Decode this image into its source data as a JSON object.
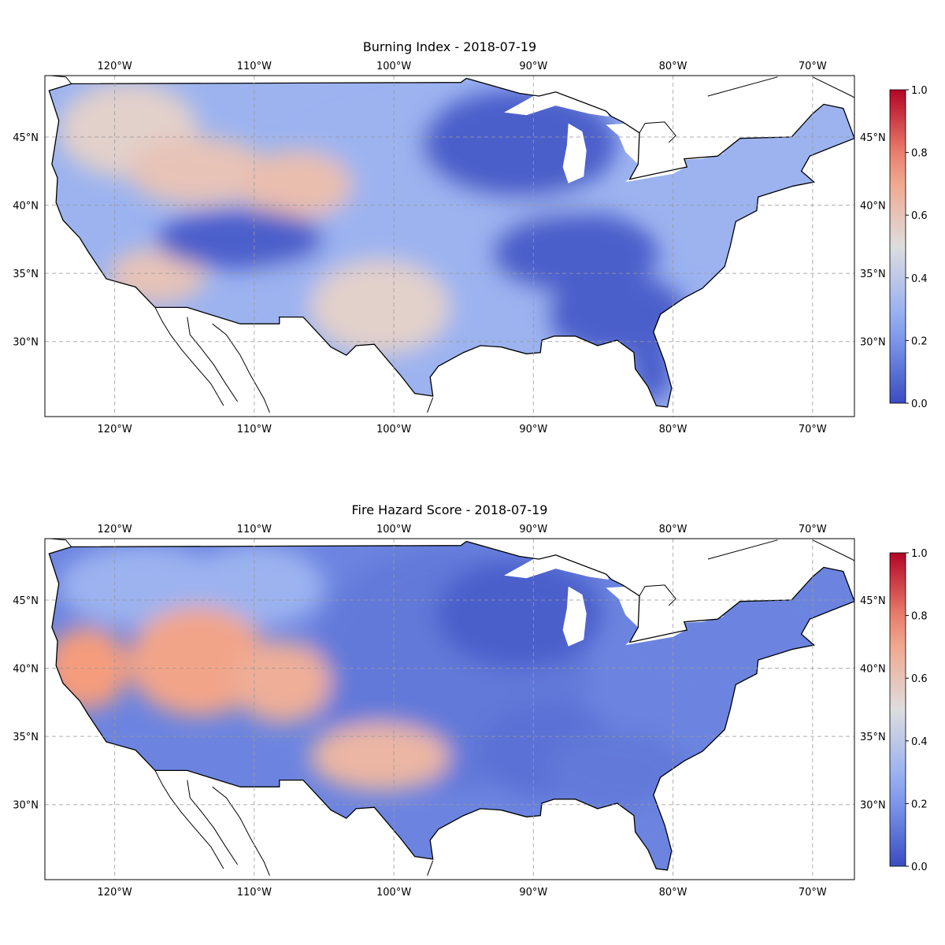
{
  "panels": [
    {
      "title": "Burning Index - 2018-07-19",
      "variable": "burning_index",
      "colormap": "coolwarm",
      "colorbar": {
        "ticks": [
          "0.0",
          "0.2",
          "0.4",
          "0.6",
          "0.8",
          "1.0"
        ],
        "range": [
          0,
          1
        ]
      },
      "regions_value": {
        "pacific_northwest": 0.55,
        "great_basin_north": 0.6,
        "wyoming_colorado": 0.62,
        "four_corners": 0.05,
        "southern_california": 0.6,
        "texas_southwest": 0.55,
        "central_plains": 0.3,
        "upper_midwest": 0.05,
        "lower_mississippi": 0.05,
        "southeast": 0.05,
        "northeast": 0.3,
        "florida": 0.05
      }
    },
    {
      "title": "Fire Hazard Score - 2018-07-19",
      "variable": "fire_hazard_score",
      "colormap": "coolwarm",
      "colorbar": {
        "ticks": [
          "0.0",
          "0.2",
          "0.4",
          "0.6",
          "0.8",
          "1.0"
        ],
        "range": [
          0,
          1
        ]
      },
      "regions_value": {
        "northern_california": 0.75,
        "utah_nevada": 0.72,
        "colorado_plateau": 0.68,
        "texas_southwest": 0.65,
        "pacific_northwest": 0.3,
        "northern_rockies": 0.3,
        "central_plains": 0.12,
        "upper_midwest": 0.05,
        "lower_mississippi": 0.1,
        "southeast": 0.12,
        "northeast": 0.15,
        "florida": 0.15
      }
    }
  ],
  "map": {
    "projection": "PlateCarree",
    "lon_range": [
      -125,
      -67
    ],
    "lat_range": [
      24.5,
      49.5
    ],
    "lon_ticks": [
      {
        "value": -120,
        "label": "120°W"
      },
      {
        "value": -110,
        "label": "110°W"
      },
      {
        "value": -100,
        "label": "100°W"
      },
      {
        "value": -90,
        "label": "90°W"
      },
      {
        "value": -80,
        "label": "80°W"
      },
      {
        "value": -70,
        "label": "70°W"
      }
    ],
    "lat_ticks": [
      {
        "value": 30,
        "label": "30°N"
      },
      {
        "value": 35,
        "label": "35°N"
      },
      {
        "value": 40,
        "label": "40°N"
      },
      {
        "value": 45,
        "label": "45°N"
      }
    ],
    "gridlines": true
  }
}
